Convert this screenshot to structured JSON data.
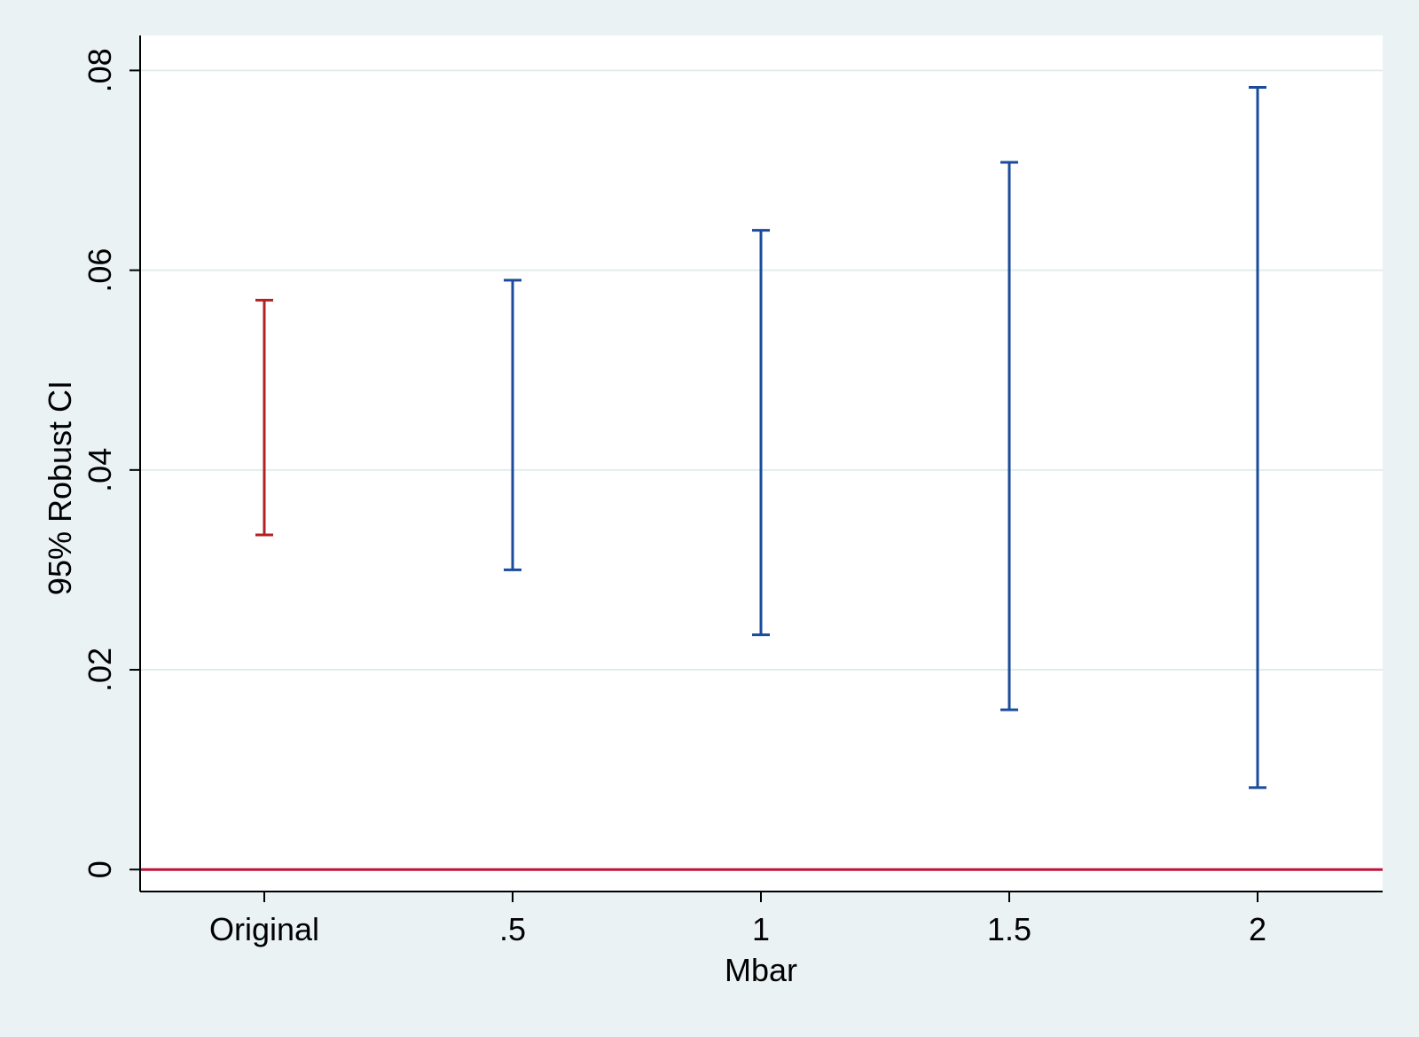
{
  "chart_data": {
    "type": "errorbar",
    "title": "",
    "xlabel": "Mbar",
    "ylabel": "95% Robust CI",
    "categories": [
      "Original",
      ".5",
      "1",
      "1.5",
      "2"
    ],
    "series": [
      {
        "name": "",
        "color": "#b22222",
        "categories": [
          "Original"
        ],
        "lower": [
          0.0335
        ],
        "upper": [
          0.057
        ]
      },
      {
        "name": "",
        "color": "#1a4b9c",
        "categories": [
          ".5",
          "1",
          "1.5",
          "2"
        ],
        "lower": [
          0.03,
          0.0235,
          0.016,
          0.0082
        ],
        "upper": [
          0.059,
          0.064,
          0.0708,
          0.0783
        ]
      }
    ],
    "yticks": [
      0,
      0.02,
      0.04,
      0.06,
      0.08
    ],
    "ytick_labels": [
      "0",
      ".02",
      ".04",
      ".06",
      ".08"
    ],
    "ylim": [
      -0.0022,
      0.0835
    ],
    "grid": true,
    "reference_line": {
      "y": 0,
      "color": "#c0143c"
    }
  },
  "colors": {
    "background": "#eaf2f3",
    "plot_background": "#ffffff",
    "grid": "#e3eced",
    "original": "#b22222",
    "robust": "#1a4b9c",
    "zero_line": "#c0143c"
  }
}
